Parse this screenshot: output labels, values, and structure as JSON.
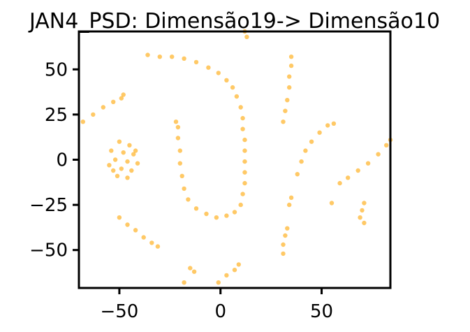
{
  "chart_data": {
    "type": "scatter",
    "title": "JAN4_PSD: Dimensão19-> Dimensão10",
    "xlabel": "",
    "ylabel": "",
    "xlim": [
      -70,
      84
    ],
    "ylim": [
      -71,
      71
    ],
    "xticks": [
      -50,
      0,
      50
    ],
    "xtick_labels": [
      "−50",
      "0",
      "50"
    ],
    "yticks": [
      -50,
      -25,
      0,
      25,
      50
    ],
    "ytick_labels": [
      "−50",
      "−25",
      "0",
      "25",
      "50"
    ],
    "grid": false,
    "legend": "none",
    "point_color": "#FFA500",
    "series": [
      {
        "points": [
          [
            -36,
            58
          ],
          [
            -30,
            57
          ],
          [
            -24,
            57
          ],
          [
            -18,
            56
          ],
          [
            -12,
            54
          ],
          [
            -6,
            51
          ],
          [
            -1,
            48
          ],
          [
            3,
            44
          ],
          [
            6,
            40
          ],
          [
            8,
            35
          ],
          [
            10,
            29
          ],
          [
            11,
            23
          ],
          [
            11,
            17
          ],
          [
            12,
            11
          ],
          [
            12,
            5
          ],
          [
            12,
            -1
          ],
          [
            12,
            -7
          ],
          [
            12,
            -13
          ],
          [
            11,
            -19
          ],
          [
            10,
            -25
          ],
          [
            7,
            -29
          ],
          [
            3,
            -31
          ],
          [
            -2,
            -32
          ],
          [
            -7,
            -30
          ],
          [
            -12,
            -27
          ],
          [
            -16,
            -22
          ],
          [
            -18,
            -16
          ],
          [
            -19,
            -9
          ],
          [
            -20,
            -2
          ],
          [
            -20,
            5
          ],
          [
            -21,
            12
          ],
          [
            -21,
            18
          ],
          [
            -22,
            21
          ],
          [
            -50,
            10
          ],
          [
            -45,
            8
          ],
          [
            -54,
            5
          ],
          [
            -48,
            4
          ],
          [
            -43,
            3
          ],
          [
            -52,
            0
          ],
          [
            -46,
            -1
          ],
          [
            -41,
            -2
          ],
          [
            -55,
            -3
          ],
          [
            -49,
            -5
          ],
          [
            -44,
            -6
          ],
          [
            -51,
            -9
          ],
          [
            -46,
            -10
          ],
          [
            -53,
            -6
          ],
          [
            -42,
            5
          ],
          [
            -68,
            21
          ],
          [
            -63,
            25
          ],
          [
            -58,
            29
          ],
          [
            -53,
            32
          ],
          [
            -49,
            34
          ],
          [
            -48,
            36
          ],
          [
            -50,
            -32
          ],
          [
            -46,
            -36
          ],
          [
            -42,
            -39
          ],
          [
            -38,
            -43
          ],
          [
            -34,
            -46
          ],
          [
            -31,
            -48
          ],
          [
            -15,
            -60
          ],
          [
            -13,
            -62
          ],
          [
            -18,
            -68
          ],
          [
            -1,
            -68
          ],
          [
            3,
            -64
          ],
          [
            7,
            -61
          ],
          [
            9,
            -58
          ],
          [
            12,
            71
          ],
          [
            13,
            68
          ],
          [
            31,
            21
          ],
          [
            32,
            27
          ],
          [
            33,
            33
          ],
          [
            34,
            40
          ],
          [
            34,
            46
          ],
          [
            35,
            52
          ],
          [
            35,
            57
          ],
          [
            31,
            -52
          ],
          [
            31,
            -47
          ],
          [
            32,
            -42
          ],
          [
            33,
            -38
          ],
          [
            34,
            -25
          ],
          [
            35,
            -21
          ],
          [
            38,
            -8
          ],
          [
            40,
            -1
          ],
          [
            42,
            5
          ],
          [
            45,
            10
          ],
          [
            49,
            15
          ],
          [
            53,
            19
          ],
          [
            56,
            20
          ],
          [
            55,
            -24
          ],
          [
            59,
            -13
          ],
          [
            63,
            -10
          ],
          [
            68,
            -6
          ],
          [
            73,
            -2
          ],
          [
            78,
            3
          ],
          [
            82,
            8
          ],
          [
            84,
            11
          ],
          [
            71,
            -24
          ],
          [
            70,
            -28
          ],
          [
            69,
            -32
          ],
          [
            71,
            -35
          ]
        ]
      }
    ]
  }
}
